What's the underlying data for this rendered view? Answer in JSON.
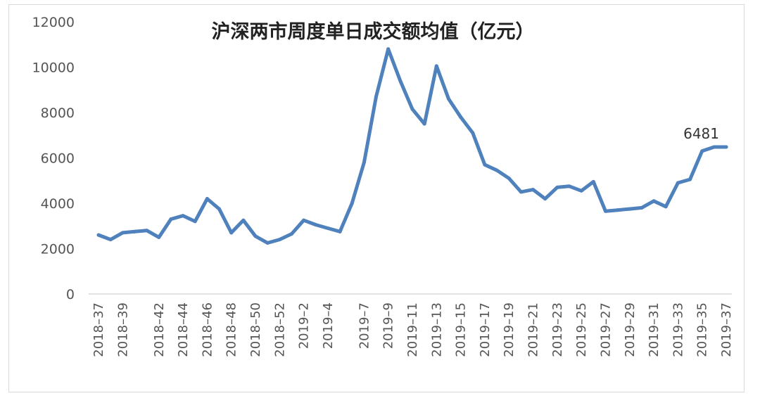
{
  "chart_data": {
    "type": "line",
    "title": "沪深两市周度单日成交额均值（亿元）",
    "xlabel": "",
    "ylabel": "",
    "ylim": [
      0,
      12000
    ],
    "yticks": [
      "0",
      "2000",
      "4000",
      "6000",
      "8000",
      "10000",
      "12000"
    ],
    "grid": false,
    "legend": "none",
    "line_color": "#4f81bd",
    "x": [
      "2018-37",
      "2018-38",
      "2018-39",
      "2018-40",
      "2018-41",
      "2018-42",
      "2018-43",
      "2018-44",
      "2018-45",
      "2018-46",
      "2018-47",
      "2018-48",
      "2018-49",
      "2018-50",
      "2018-51",
      "2018-52",
      "2019-1",
      "2019-2",
      "2019-3",
      "2019-4",
      "2019-5",
      "2019-6",
      "2019-7",
      "2019-8",
      "2019-9",
      "2019-10",
      "2019-11",
      "2019-12",
      "2019-13",
      "2019-14",
      "2019-15",
      "2019-16",
      "2019-17",
      "2019-18",
      "2019-19",
      "2019-20",
      "2019-21",
      "2019-22",
      "2019-23",
      "2019-24",
      "2019-25",
      "2019-26",
      "2019-27",
      "2019-28",
      "2019-29",
      "2019-30",
      "2019-31",
      "2019-32",
      "2019-33",
      "2019-34",
      "2019-35",
      "2019-36",
      "2019-37"
    ],
    "x_tick_labels": [
      "2018–37",
      "2018–39",
      "2018–42",
      "2018–44",
      "2018–46",
      "2018–48",
      "2018–50",
      "2018–52",
      "2019–2",
      "2019–4",
      "2019–7",
      "2019–9",
      "2019–11",
      "2019–13",
      "2019–15",
      "2019–17",
      "2019–19",
      "2019–21",
      "2019–23",
      "2019–25",
      "2019–27",
      "2019–29",
      "2019–31",
      "2019–33",
      "2019–35",
      "2019–37"
    ],
    "series": [
      {
        "values": [
          2600,
          2400,
          2700,
          2750,
          2800,
          2500,
          3300,
          3450,
          3200,
          4200,
          3750,
          2700,
          3250,
          2550,
          2250,
          2400,
          2650,
          3250,
          3050,
          2900,
          2750,
          4000,
          5800,
          8700,
          10800,
          9400,
          8150,
          7500,
          10050,
          8600,
          7800,
          7100,
          5700,
          5450,
          5100,
          4500,
          4600,
          4200,
          4700,
          4750,
          4550,
          4950,
          3650,
          3700,
          3750,
          3800,
          4100,
          3850,
          4900,
          5050,
          6300,
          6481,
          6481
        ]
      }
    ],
    "annotations": [
      {
        "text": "6481",
        "index": 52
      }
    ]
  }
}
